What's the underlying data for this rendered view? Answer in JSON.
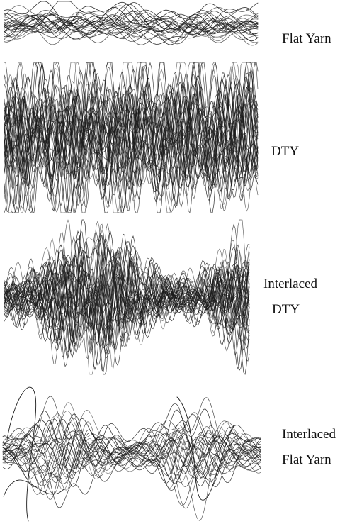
{
  "panels": [
    {
      "label_lines": [
        "Flat Yarn"
      ]
    },
    {
      "label_lines": [
        "DTY"
      ]
    },
    {
      "label_lines": [
        "Interlaced",
        "DTY"
      ]
    },
    {
      "label_lines": [
        "Interlaced",
        "Flat Yarn"
      ]
    }
  ]
}
